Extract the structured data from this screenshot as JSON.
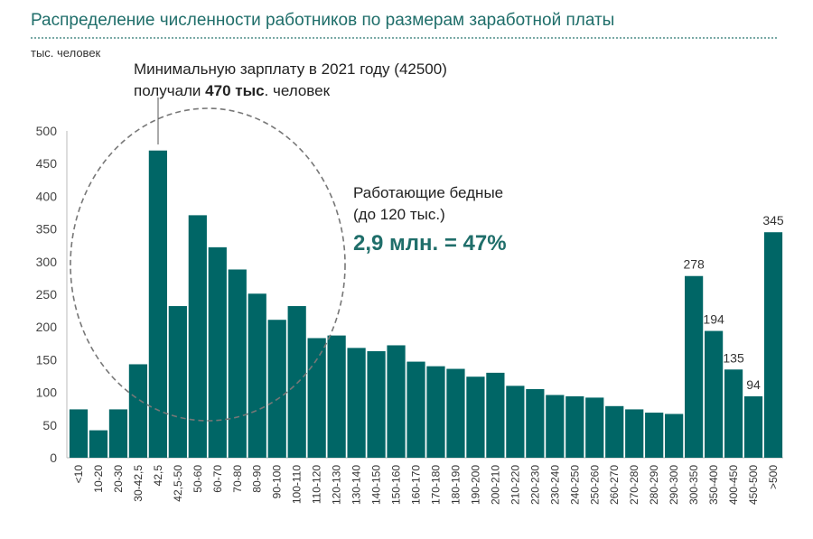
{
  "title": "Распределение численности работников по размерам заработной платы",
  "colors": {
    "bar": "#006666",
    "title": "#1f6e6a",
    "highlight": "#1f6e6a",
    "text": "#333333"
  },
  "annotations": {
    "min_wage_line1": "Минимальную зарплату в 2021 году (42500)",
    "min_wage_line2_pre": "получали ",
    "min_wage_line2_bold": "470 тыс",
    "min_wage_line2_post": ". человек",
    "poor_line1": "Работающие бедные",
    "poor_line2": "(до 120 тыс.)",
    "poor_big": "2,9 млн. = 47%"
  },
  "chart_data": {
    "type": "bar",
    "ylabel": "тыс. человек",
    "ylim": [
      0,
      500
    ],
    "yticks": [
      0,
      50,
      100,
      150,
      200,
      250,
      300,
      350,
      400,
      450,
      500
    ],
    "grid": false,
    "categories": [
      "<10",
      "10-20",
      "20-30",
      "30-42,5",
      "42,5",
      "42,5-50",
      "50-60",
      "60-70",
      "70-80",
      "80-90",
      "90-100",
      "100-110",
      "110-120",
      "120-130",
      "130-140",
      "140-150",
      "150-160",
      "160-170",
      "170-180",
      "180-190",
      "190-200",
      "200-210",
      "210-220",
      "220-230",
      "230-240",
      "240-250",
      "250-260",
      "260-270",
      "270-280",
      "280-290",
      "290-300",
      "300-350",
      "350-400",
      "400-450",
      "450-500",
      ">500"
    ],
    "values": [
      74,
      42,
      74,
      143,
      470,
      232,
      371,
      322,
      288,
      251,
      211,
      232,
      183,
      187,
      168,
      163,
      172,
      147,
      140,
      136,
      124,
      130,
      110,
      105,
      96,
      94,
      92,
      79,
      74,
      69,
      67,
      278,
      194,
      135,
      94,
      345
    ],
    "data_labels": [
      {
        "category": "300-350",
        "label": "278"
      },
      {
        "category": "350-400",
        "label": "194"
      },
      {
        "category": "400-450",
        "label": "135"
      },
      {
        "category": "450-500",
        "label": "94"
      },
      {
        "category": ">500",
        "label": "345"
      }
    ]
  }
}
